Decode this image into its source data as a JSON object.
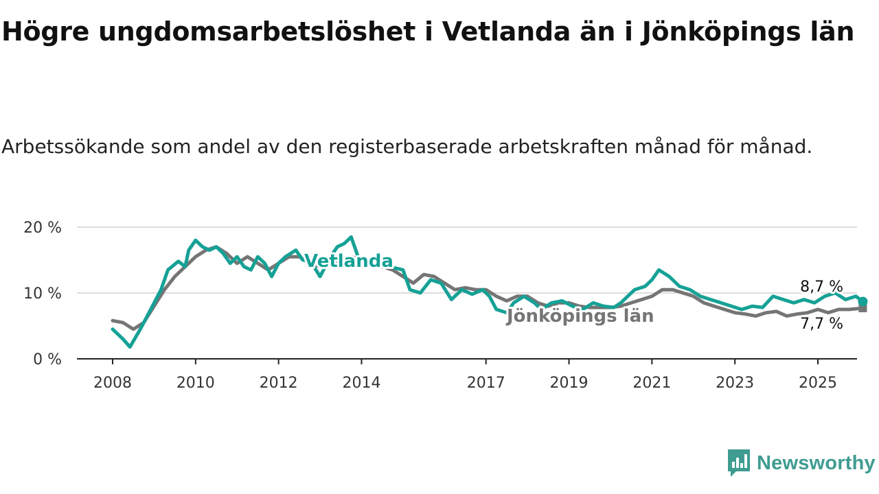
{
  "title": "Högre ungdomsarbetslöshet i Vetlanda än i Jönköpings län",
  "subtitle": "Arbetssökande som andel av den registerbaserade arbetskraften månad för månad.",
  "brand": {
    "name": "Newsworthy",
    "icon": "newsworthy-logo-icon",
    "color": "#3f9c91"
  },
  "colors": {
    "vetlanda": "#16a196",
    "jonkoping": "#757575",
    "grid": "#d0d0d0",
    "axis": "#222222"
  },
  "chart_data": {
    "type": "line",
    "xlabel": "",
    "ylabel": "",
    "ylim": [
      0,
      20
    ],
    "yticks": [
      {
        "value": 0,
        "label": "0 %"
      },
      {
        "value": 10,
        "label": "10 %"
      },
      {
        "value": 20,
        "label": "20 %"
      }
    ],
    "xticks": [
      "2008",
      "2010",
      "2012",
      "2014",
      "2017",
      "2019",
      "2021",
      "2023",
      "2025"
    ],
    "grid": "horizontal",
    "legend": "inline labels",
    "series": [
      {
        "name": "Vetlanda",
        "key": "vetlanda",
        "end_label": "8,7 %",
        "points": [
          [
            "2008-01",
            4.5
          ],
          [
            "2008-04",
            3.0
          ],
          [
            "2008-06",
            1.8
          ],
          [
            "2008-09",
            4.5
          ],
          [
            "2008-12",
            7.5
          ],
          [
            "2009-03",
            10.5
          ],
          [
            "2009-05",
            13.5
          ],
          [
            "2009-08",
            14.8
          ],
          [
            "2009-10",
            14.0
          ],
          [
            "2009-11",
            16.5
          ],
          [
            "2010-01",
            18.0
          ],
          [
            "2010-03",
            17.0
          ],
          [
            "2010-05",
            16.5
          ],
          [
            "2010-07",
            17.0
          ],
          [
            "2010-09",
            16.0
          ],
          [
            "2010-11",
            14.5
          ],
          [
            "2011-01",
            15.5
          ],
          [
            "2011-03",
            14.0
          ],
          [
            "2011-05",
            13.5
          ],
          [
            "2011-07",
            15.5
          ],
          [
            "2011-09",
            14.5
          ],
          [
            "2011-11",
            12.5
          ],
          [
            "2012-01",
            14.5
          ],
          [
            "2012-03",
            15.5
          ],
          [
            "2012-06",
            16.5
          ],
          [
            "2012-08",
            15.0
          ],
          [
            "2012-10",
            15.0
          ],
          [
            "2013-01",
            12.5
          ],
          [
            "2013-04",
            15.5
          ],
          [
            "2013-06",
            17.0
          ],
          [
            "2013-08",
            17.5
          ],
          [
            "2013-10",
            18.5
          ],
          [
            "2013-12",
            15.5
          ],
          [
            "2014-03",
            15.0
          ],
          [
            "2014-06",
            14.5
          ],
          [
            "2014-09",
            14.0
          ],
          [
            "2015-01",
            13.5
          ],
          [
            "2015-03",
            10.5
          ],
          [
            "2015-06",
            10.0
          ],
          [
            "2015-09",
            12.0
          ],
          [
            "2015-12",
            11.5
          ],
          [
            "2016-03",
            9.0
          ],
          [
            "2016-06",
            10.5
          ],
          [
            "2016-09",
            9.8
          ],
          [
            "2016-12",
            10.5
          ],
          [
            "2017-02",
            9.5
          ],
          [
            "2017-04",
            7.5
          ],
          [
            "2017-07",
            7.0
          ],
          [
            "2017-09",
            8.5
          ],
          [
            "2017-12",
            9.5
          ],
          [
            "2018-03",
            8.5
          ],
          [
            "2018-05",
            7.5
          ],
          [
            "2018-08",
            8.5
          ],
          [
            "2018-11",
            8.8
          ],
          [
            "2019-02",
            8.0
          ],
          [
            "2019-05",
            7.5
          ],
          [
            "2019-08",
            8.5
          ],
          [
            "2019-11",
            8.0
          ],
          [
            "2020-02",
            7.8
          ],
          [
            "2020-04",
            8.5
          ],
          [
            "2020-06",
            9.5
          ],
          [
            "2020-08",
            10.5
          ],
          [
            "2020-11",
            11.0
          ],
          [
            "2021-01",
            12.0
          ],
          [
            "2021-03",
            13.5
          ],
          [
            "2021-06",
            12.5
          ],
          [
            "2021-09",
            11.0
          ],
          [
            "2021-12",
            10.5
          ],
          [
            "2022-03",
            9.5
          ],
          [
            "2022-06",
            9.0
          ],
          [
            "2022-09",
            8.5
          ],
          [
            "2022-12",
            8.0
          ],
          [
            "2023-03",
            7.5
          ],
          [
            "2023-06",
            8.0
          ],
          [
            "2023-09",
            7.8
          ],
          [
            "2023-12",
            9.5
          ],
          [
            "2024-03",
            9.0
          ],
          [
            "2024-06",
            8.5
          ],
          [
            "2024-09",
            9.0
          ],
          [
            "2024-12",
            8.5
          ],
          [
            "2025-03",
            9.5
          ],
          [
            "2025-06",
            10.0
          ],
          [
            "2025-09",
            9.0
          ],
          [
            "2025-12",
            9.5
          ],
          [
            "2026-02",
            8.7
          ]
        ]
      },
      {
        "name": "Jönköpings län",
        "key": "jonkoping",
        "end_label": "7,7 %",
        "points": [
          [
            "2008-01",
            5.8
          ],
          [
            "2008-04",
            5.5
          ],
          [
            "2008-07",
            4.5
          ],
          [
            "2008-10",
            5.5
          ],
          [
            "2009-01",
            8.0
          ],
          [
            "2009-04",
            10.5
          ],
          [
            "2009-07",
            12.5
          ],
          [
            "2009-10",
            14.0
          ],
          [
            "2010-01",
            15.5
          ],
          [
            "2010-04",
            16.5
          ],
          [
            "2010-07",
            17.0
          ],
          [
            "2010-10",
            16.0
          ],
          [
            "2011-01",
            14.5
          ],
          [
            "2011-04",
            15.5
          ],
          [
            "2011-07",
            14.5
          ],
          [
            "2011-10",
            13.5
          ],
          [
            "2012-01",
            14.5
          ],
          [
            "2012-04",
            15.5
          ],
          [
            "2012-07",
            15.5
          ],
          [
            "2012-10",
            14.5
          ],
          [
            "2013-01",
            14.0
          ],
          [
            "2013-04",
            14.5
          ],
          [
            "2013-07",
            15.0
          ],
          [
            "2013-10",
            15.5
          ],
          [
            "2014-01",
            15.0
          ],
          [
            "2014-04",
            14.5
          ],
          [
            "2014-07",
            14.0
          ],
          [
            "2014-10",
            13.5
          ],
          [
            "2015-01",
            12.5
          ],
          [
            "2015-04",
            11.5
          ],
          [
            "2015-07",
            12.8
          ],
          [
            "2015-10",
            12.5
          ],
          [
            "2016-01",
            11.5
          ],
          [
            "2016-04",
            10.5
          ],
          [
            "2016-07",
            10.8
          ],
          [
            "2016-10",
            10.5
          ],
          [
            "2017-01",
            10.5
          ],
          [
            "2017-04",
            9.5
          ],
          [
            "2017-07",
            8.8
          ],
          [
            "2017-10",
            9.5
          ],
          [
            "2018-01",
            9.5
          ],
          [
            "2018-04",
            8.5
          ],
          [
            "2018-07",
            8.0
          ],
          [
            "2018-10",
            8.5
          ],
          [
            "2019-01",
            8.5
          ],
          [
            "2019-04",
            8.0
          ],
          [
            "2019-07",
            7.8
          ],
          [
            "2019-10",
            7.8
          ],
          [
            "2020-01",
            7.8
          ],
          [
            "2020-04",
            8.0
          ],
          [
            "2020-07",
            8.5
          ],
          [
            "2020-10",
            9.0
          ],
          [
            "2021-01",
            9.5
          ],
          [
            "2021-04",
            10.5
          ],
          [
            "2021-07",
            10.5
          ],
          [
            "2021-10",
            10.0
          ],
          [
            "2022-01",
            9.5
          ],
          [
            "2022-04",
            8.5
          ],
          [
            "2022-07",
            8.0
          ],
          [
            "2022-10",
            7.5
          ],
          [
            "2023-01",
            7.0
          ],
          [
            "2023-04",
            6.8
          ],
          [
            "2023-07",
            6.5
          ],
          [
            "2023-10",
            7.0
          ],
          [
            "2024-01",
            7.2
          ],
          [
            "2024-04",
            6.5
          ],
          [
            "2024-07",
            6.8
          ],
          [
            "2024-10",
            7.0
          ],
          [
            "2025-01",
            7.5
          ],
          [
            "2025-04",
            7.0
          ],
          [
            "2025-07",
            7.5
          ],
          [
            "2025-10",
            7.5
          ],
          [
            "2026-02",
            7.7
          ]
        ]
      }
    ]
  }
}
